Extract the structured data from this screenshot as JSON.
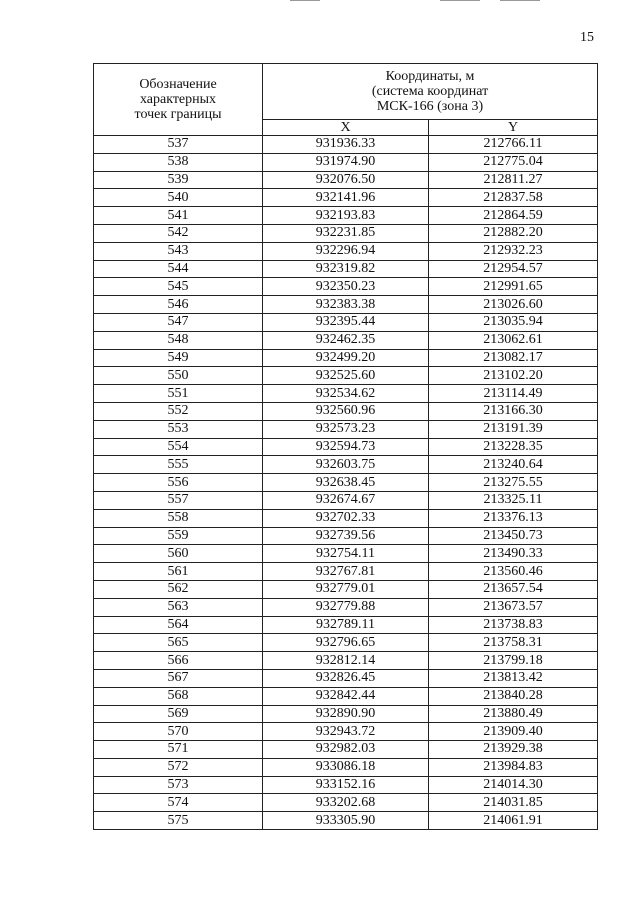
{
  "page_number": "15",
  "table": {
    "header": {
      "point_col": "Обозначение характерных точек границы",
      "coords_group_line1": "Координаты, м",
      "coords_group_line2": "(система координат",
      "coords_group_line3": "МСК-166 (зона 3)",
      "x_col": "X",
      "y_col": "Y"
    },
    "rows": [
      {
        "point": "537",
        "x": "931936.33",
        "y": "212766.11"
      },
      {
        "point": "538",
        "x": "931974.90",
        "y": "212775.04"
      },
      {
        "point": "539",
        "x": "932076.50",
        "y": "212811.27"
      },
      {
        "point": "540",
        "x": "932141.96",
        "y": "212837.58"
      },
      {
        "point": "541",
        "x": "932193.83",
        "y": "212864.59"
      },
      {
        "point": "542",
        "x": "932231.85",
        "y": "212882.20"
      },
      {
        "point": "543",
        "x": "932296.94",
        "y": "212932.23"
      },
      {
        "point": "544",
        "x": "932319.82",
        "y": "212954.57"
      },
      {
        "point": "545",
        "x": "932350.23",
        "y": "212991.65"
      },
      {
        "point": "546",
        "x": "932383.38",
        "y": "213026.60"
      },
      {
        "point": "547",
        "x": "932395.44",
        "y": "213035.94"
      },
      {
        "point": "548",
        "x": "932462.35",
        "y": "213062.61"
      },
      {
        "point": "549",
        "x": "932499.20",
        "y": "213082.17"
      },
      {
        "point": "550",
        "x": "932525.60",
        "y": "213102.20"
      },
      {
        "point": "551",
        "x": "932534.62",
        "y": "213114.49"
      },
      {
        "point": "552",
        "x": "932560.96",
        "y": "213166.30"
      },
      {
        "point": "553",
        "x": "932573.23",
        "y": "213191.39"
      },
      {
        "point": "554",
        "x": "932594.73",
        "y": "213228.35"
      },
      {
        "point": "555",
        "x": "932603.75",
        "y": "213240.64"
      },
      {
        "point": "556",
        "x": "932638.45",
        "y": "213275.55"
      },
      {
        "point": "557",
        "x": "932674.67",
        "y": "213325.11"
      },
      {
        "point": "558",
        "x": "932702.33",
        "y": "213376.13"
      },
      {
        "point": "559",
        "x": "932739.56",
        "y": "213450.73"
      },
      {
        "point": "560",
        "x": "932754.11",
        "y": "213490.33"
      },
      {
        "point": "561",
        "x": "932767.81",
        "y": "213560.46"
      },
      {
        "point": "562",
        "x": "932779.01",
        "y": "213657.54"
      },
      {
        "point": "563",
        "x": "932779.88",
        "y": "213673.57"
      },
      {
        "point": "564",
        "x": "932789.11",
        "y": "213738.83"
      },
      {
        "point": "565",
        "x": "932796.65",
        "y": "213758.31"
      },
      {
        "point": "566",
        "x": "932812.14",
        "y": "213799.18"
      },
      {
        "point": "567",
        "x": "932826.45",
        "y": "213813.42"
      },
      {
        "point": "568",
        "x": "932842.44",
        "y": "213840.28"
      },
      {
        "point": "569",
        "x": "932890.90",
        "y": "213880.49"
      },
      {
        "point": "570",
        "x": "932943.72",
        "y": "213909.40"
      },
      {
        "point": "571",
        "x": "932982.03",
        "y": "213929.38"
      },
      {
        "point": "572",
        "x": "933086.18",
        "y": "213984.83"
      },
      {
        "point": "573",
        "x": "933152.16",
        "y": "214014.30"
      },
      {
        "point": "574",
        "x": "933202.68",
        "y": "214031.85"
      },
      {
        "point": "575",
        "x": "933305.90",
        "y": "214061.91"
      }
    ]
  }
}
